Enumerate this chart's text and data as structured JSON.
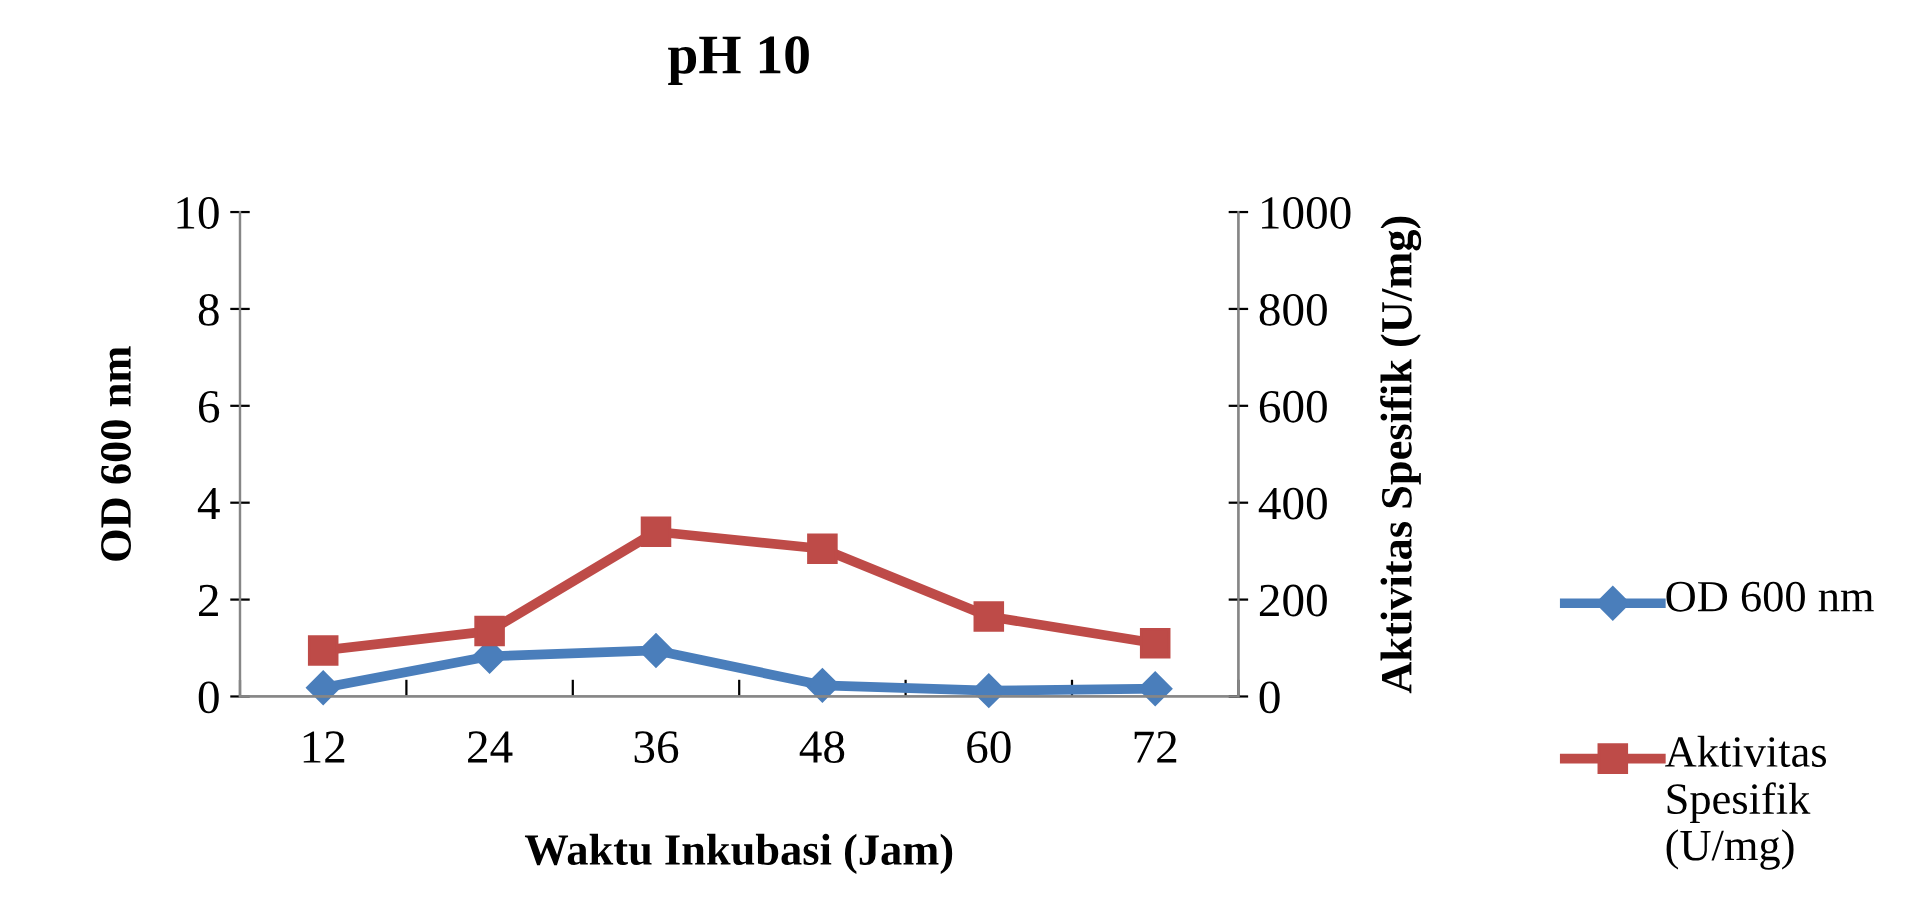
{
  "chart_data": {
    "type": "line",
    "title": "pH 10",
    "xlabel": "Waktu Inkubasi (Jam)",
    "ylabel": "OD 600 nm",
    "y2label": "Aktivitas Spesifik (U/mg)",
    "categories": [
      "12",
      "24",
      "36",
      "48",
      "60",
      "72"
    ],
    "series": [
      {
        "name": "OD 600 nm",
        "color": "#4a7ebb",
        "marker": "diamond",
        "values": [
          0.18,
          0.83,
          0.95,
          0.23,
          0.12,
          0.16
        ]
      },
      {
        "name": "Aktivitas Spesifik (U/mg)",
        "color": "#be4b48",
        "marker": "square",
        "axis": "y2",
        "values": [
          95,
          135,
          340,
          305,
          165,
          110
        ]
      }
    ],
    "ylim": [
      0,
      10
    ],
    "yticks": [
      0,
      2,
      4,
      6,
      8,
      10
    ],
    "y2lim": [
      0,
      1000
    ],
    "y2ticks": [
      0,
      200,
      400,
      600,
      800,
      1000
    ],
    "grid": false,
    "legend": "right",
    "line_style": "solid"
  }
}
